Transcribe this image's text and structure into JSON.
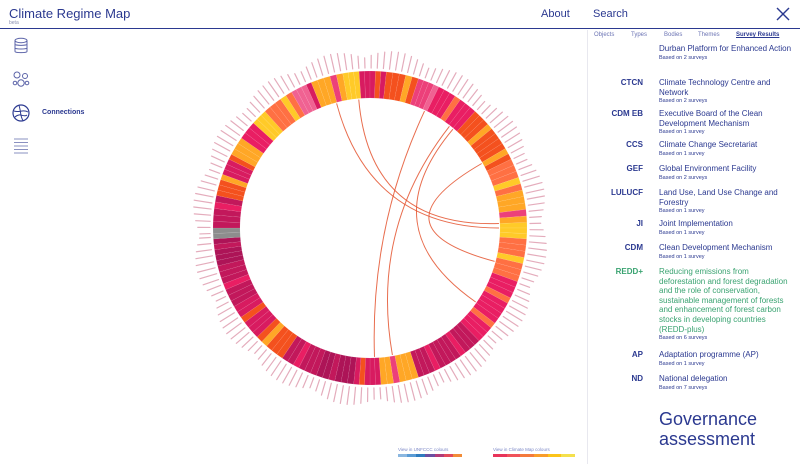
{
  "header": {
    "title": "Climate Regime Map",
    "beta": "beta",
    "about": "About",
    "search": "Search"
  },
  "sidebar": {
    "items": [
      {
        "icon": "database-icon"
      },
      {
        "icon": "cluster-icon"
      },
      {
        "icon": "connections-icon",
        "label": "Connections"
      },
      {
        "icon": "list-icon"
      }
    ]
  },
  "panel": {
    "tabs": [
      "Objects",
      "Types",
      "Bodies",
      "Themes",
      "Survey Results"
    ],
    "active_tab": "Survey Results",
    "results": [
      {
        "abbr": "",
        "name": "Durban Platform for Enhanced Action",
        "surveys": "Based on 2 surveys",
        "color": "#2b3990"
      },
      {
        "abbr": "CTCN",
        "name": "Climate Technology Centre and Network",
        "surveys": "Based on 2 surveys",
        "color": "#2b3990"
      },
      {
        "abbr": "CDM EB",
        "name": "Executive Board of the Clean Development Mechanism",
        "surveys": "Based on 1 survey",
        "color": "#2b3990"
      },
      {
        "abbr": "CCS",
        "name": "Climate Change Secretariat",
        "surveys": "Based on 1 survey",
        "color": "#2b3990"
      },
      {
        "abbr": "GEF",
        "name": "Global Environment Facility",
        "surveys": "Based on 2 surveys",
        "color": "#2b3990"
      },
      {
        "abbr": "LULUCF",
        "name": "Land Use, Land Use Change and Forestry",
        "surveys": "Based on 1 survey",
        "color": "#2b3990"
      },
      {
        "abbr": "JI",
        "name": "Joint Implementation",
        "surveys": "Based on 1 survey",
        "color": "#2b3990"
      },
      {
        "abbr": "CDM",
        "name": "Clean Development Mechanism",
        "surveys": "Based on 1 survey",
        "color": "#2b3990"
      },
      {
        "abbr": "REDD+",
        "name": "Reducing emissions from deforestation and forest degradation and the role of conservation, sustainable management of forests and enhancement of forest carbon stocks in developing countries (REDD-plus)",
        "surveys": "Based on 6 surveys",
        "color": "#3aa371"
      },
      {
        "abbr": "AP",
        "name": "Adaptation programme (AP)",
        "surveys": "Based on 1 survey",
        "color": "#2b3990"
      },
      {
        "abbr": "ND",
        "name": "National delegation",
        "surveys": "Based on 7 surveys",
        "color": "#2b3990"
      }
    ],
    "governance_title": "Governance assessment"
  },
  "legend": {
    "unfccc_label": "View in UNFCCC colours",
    "unfccc_colors": [
      "#8bb7e0",
      "#5a9bd5",
      "#2e7bbf",
      "#6c4ea1",
      "#b23b78",
      "#e24a5a",
      "#f28c38"
    ],
    "crm_label": "View in Climate Map colours",
    "crm_colors": [
      "#e8345a",
      "#f0525a",
      "#f47a3c",
      "#f99d2a",
      "#fcc419",
      "#f4e04d"
    ]
  },
  "viz": {
    "segment_colors": [
      "#c2185b",
      "#d81b60",
      "#e91e63",
      "#f4511e",
      "#ff7043",
      "#ffa726",
      "#ffca28",
      "#ec407a",
      "#ad1457",
      "#f06292",
      "#8d8d8d"
    ],
    "ring_segments": [
      {
        "start": -92,
        "end": -90,
        "c": 10
      },
      {
        "start": -90,
        "end": -78,
        "c": 0
      },
      {
        "start": -78,
        "end": -70,
        "c": 3
      },
      {
        "start": -70,
        "end": -62,
        "c": 1
      },
      {
        "start": -62,
        "end": -55,
        "c": 5
      },
      {
        "start": -55,
        "end": -48,
        "c": 2
      },
      {
        "start": -48,
        "end": -42,
        "c": 6
      },
      {
        "start": -42,
        "end": -30,
        "c": 4
      },
      {
        "start": -30,
        "end": -22,
        "c": 9
      },
      {
        "start": -22,
        "end": -10,
        "c": 5
      },
      {
        "start": -10,
        "end": -4,
        "c": 6
      },
      {
        "start": -4,
        "end": 6,
        "c": 1
      },
      {
        "start": 6,
        "end": 18,
        "c": 3
      },
      {
        "start": 18,
        "end": 26,
        "c": 7
      },
      {
        "start": 26,
        "end": 42,
        "c": 2
      },
      {
        "start": 42,
        "end": 64,
        "c": 3
      },
      {
        "start": 64,
        "end": 76,
        "c": 4
      },
      {
        "start": 76,
        "end": 88,
        "c": 5
      },
      {
        "start": 88,
        "end": 94,
        "c": 6
      },
      {
        "start": 94,
        "end": 110,
        "c": 4
      },
      {
        "start": 110,
        "end": 136,
        "c": 2
      },
      {
        "start": 136,
        "end": 162,
        "c": 0
      },
      {
        "start": 162,
        "end": 176,
        "c": 5
      },
      {
        "start": 176,
        "end": 186,
        "c": 1
      },
      {
        "start": 186,
        "end": 200,
        "c": 8
      },
      {
        "start": 200,
        "end": 214,
        "c": 0
      },
      {
        "start": 214,
        "end": 226,
        "c": 3
      },
      {
        "start": 226,
        "end": 240,
        "c": 1
      },
      {
        "start": 240,
        "end": 256,
        "c": 0
      },
      {
        "start": 256,
        "end": 266,
        "c": 8
      },
      {
        "start": 266,
        "end": 268,
        "c": 10
      }
    ],
    "connections": [
      {
        "from": -15,
        "to": 90
      },
      {
        "from": -5,
        "to": 88
      },
      {
        "from": 25,
        "to": 178
      },
      {
        "from": 38,
        "to": 170
      },
      {
        "from": 40,
        "to": 125
      },
      {
        "from": 60,
        "to": 105
      }
    ]
  }
}
